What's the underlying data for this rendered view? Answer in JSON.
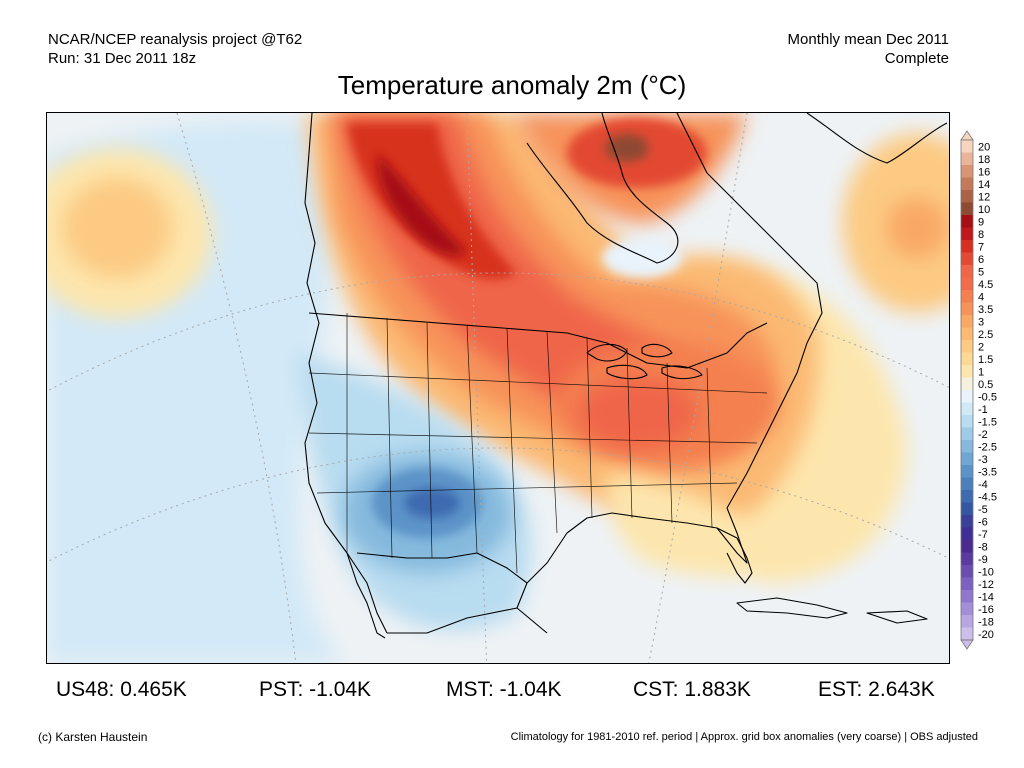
{
  "header": {
    "left_line1": "NCAR/NCEP reanalysis project @T62",
    "left_line2": "Run: 31 Dec 2011 18z",
    "right_line1": "Monthly mean Dec 2011",
    "right_line2": "Complete",
    "title": "Temperature anomaly 2m (°C)"
  },
  "legend": {
    "labels": [
      "20",
      "18",
      "16",
      "14",
      "12",
      "10",
      "9",
      "8",
      "7",
      "6",
      "5",
      "4.5",
      "4",
      "3.5",
      "3",
      "2.5",
      "2",
      "1.5",
      "1",
      "0.5",
      "-0.5",
      "-1",
      "-1.5",
      "-2",
      "-2.5",
      "-3",
      "-3.5",
      "-4",
      "-4.5",
      "-5",
      "-6",
      "-7",
      "-8",
      "-9",
      "-10",
      "-12",
      "-14",
      "-16",
      "-18",
      "-20"
    ],
    "colors": [
      "#f7d4c0",
      "#e9b49a",
      "#d99573",
      "#c47a5a",
      "#ab6246",
      "#8f4a33",
      "#a50f15",
      "#c0191c",
      "#d7301f",
      "#e34a33",
      "#ef6548",
      "#f26b4a",
      "#f4804f",
      "#f7935a",
      "#f9a765",
      "#fbb973",
      "#fcca83",
      "#fdd995",
      "#fde6ad",
      "#f6f1dd",
      "#e8f3fb",
      "#d1e8f6",
      "#b8dcf0",
      "#9ecbe7",
      "#85b9dd",
      "#6fa6d3",
      "#5b93c8",
      "#4a7fbc",
      "#3d6bb0",
      "#3457a3",
      "#3a3f9a",
      "#3f2f94",
      "#4a2a8f",
      "#5a3a9f",
      "#6b4db0",
      "#7d61c0",
      "#9077cd",
      "#a48ed8",
      "#b8a6e2",
      "#cdbfec"
    ]
  },
  "stats": [
    {
      "label": "US48: 0.465K"
    },
    {
      "label": "PST: -1.04K"
    },
    {
      "label": "MST: -1.04K"
    },
    {
      "label": "CST: 1.883K"
    },
    {
      "label": "EST: 2.643K"
    }
  ],
  "footer": {
    "left": "(c) Karsten Haustein",
    "right": "Climatology for 1981-2010 ref. period | Approx. grid box anomalies (very coarse) | OBS adjusted"
  },
  "map": {
    "background_color": "#eef2f5",
    "land_outline_color": "#000000"
  }
}
